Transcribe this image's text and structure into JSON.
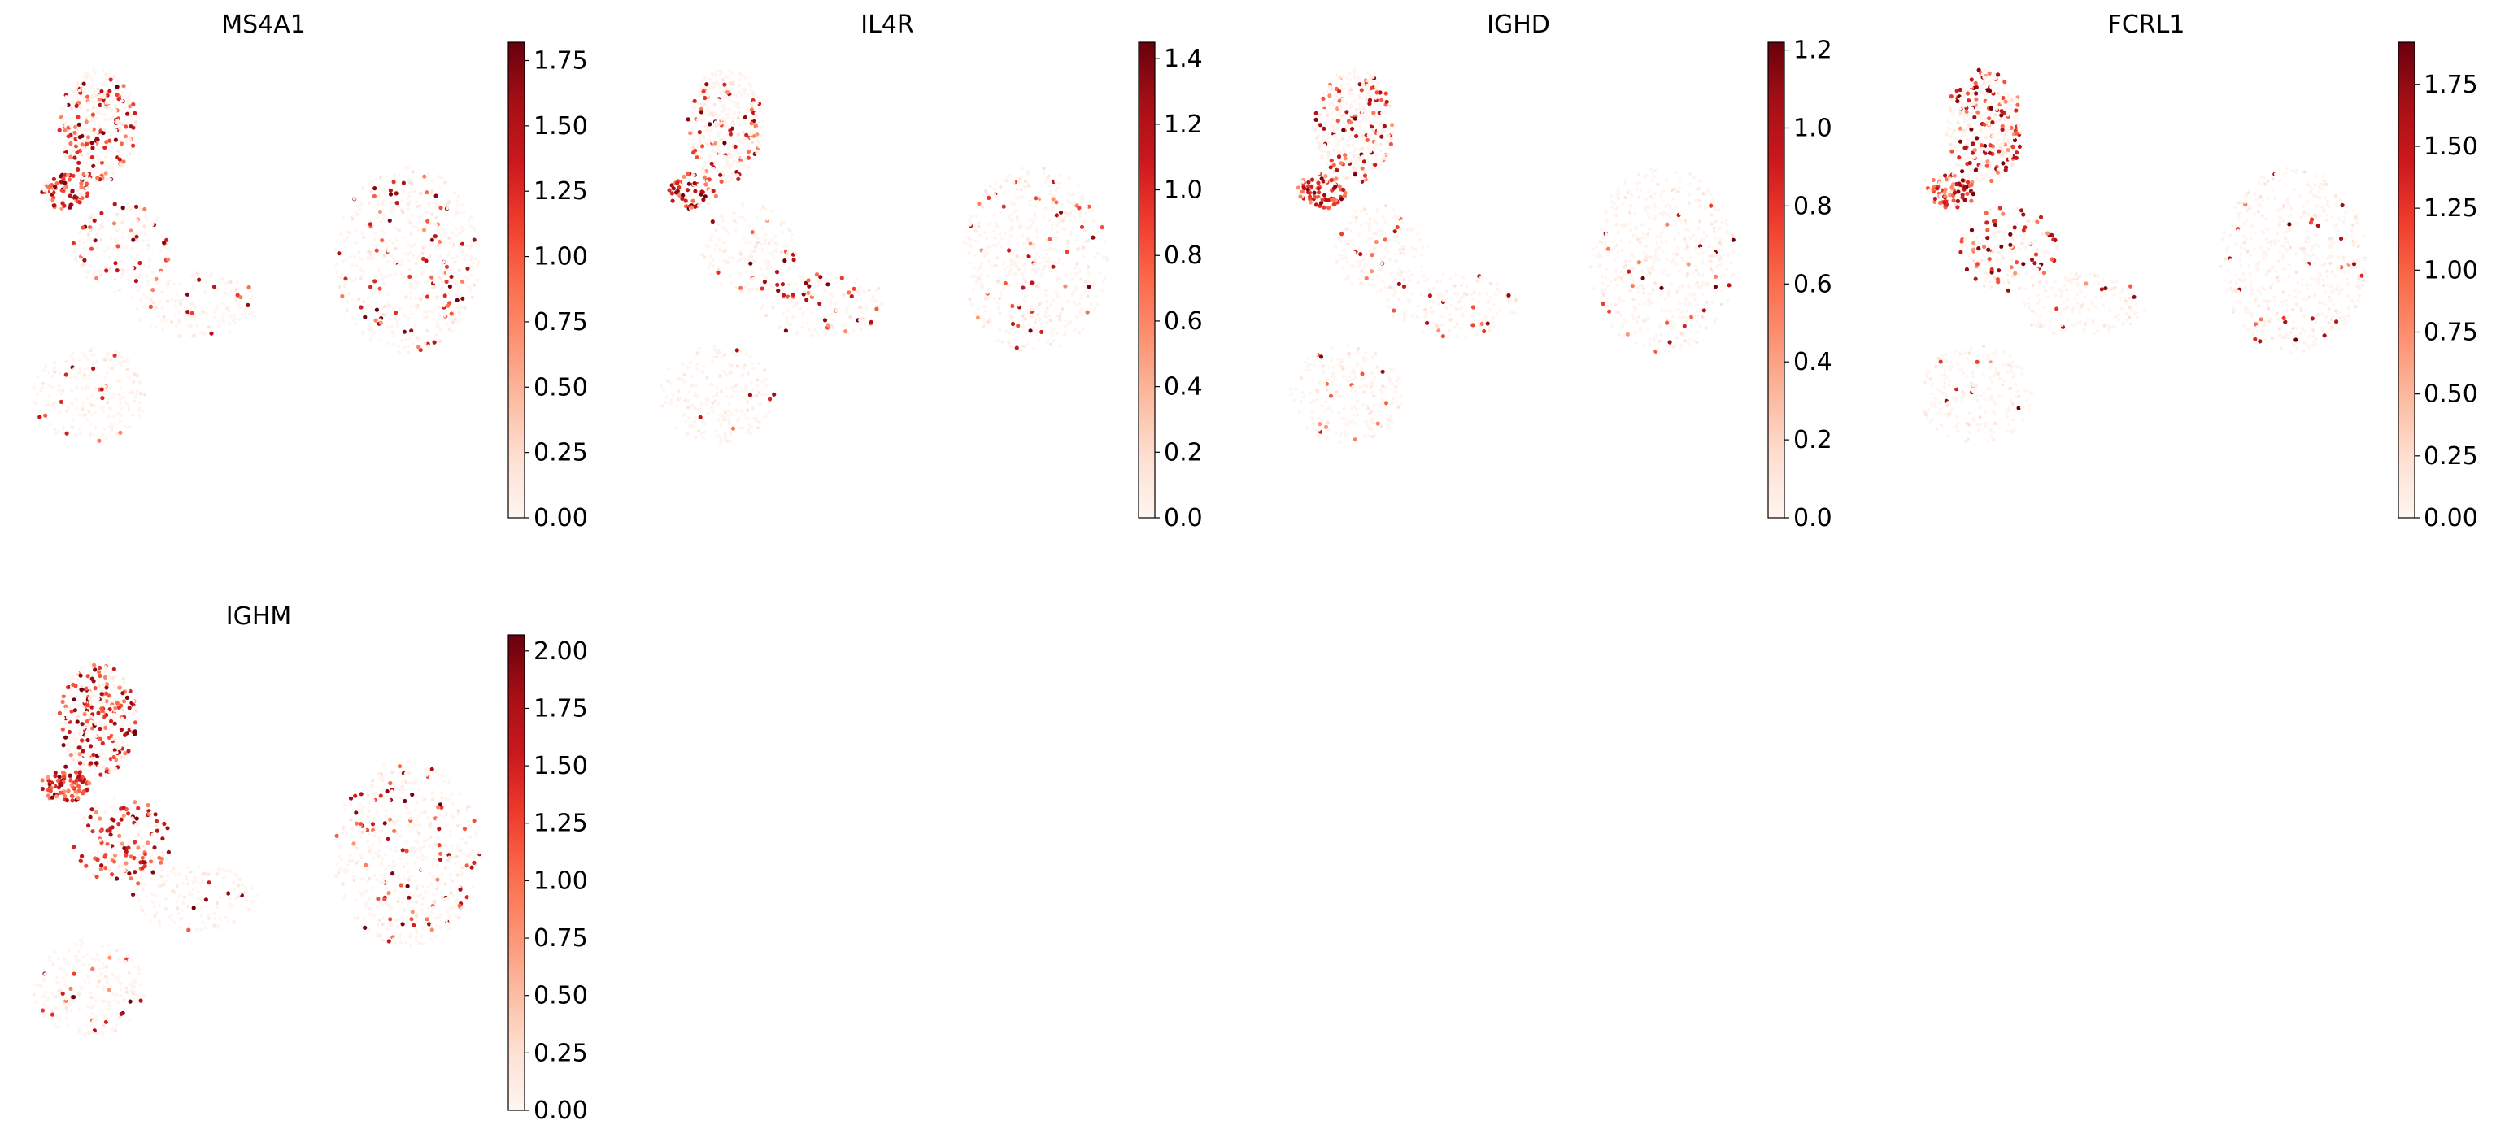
{
  "colormap": [
    "#fff5f0",
    "#fee0d2",
    "#fcbba1",
    "#fc9272",
    "#fb6a4a",
    "#ef3b2c",
    "#cb181d",
    "#a50f15",
    "#67000d"
  ],
  "chart_data": [
    {
      "type": "scatter",
      "title": "MS4A1",
      "xlabel": "",
      "ylabel": "",
      "grid": false,
      "color_scale": {
        "min": 0.0,
        "max": 1.82,
        "ticks": [
          0.0,
          0.25,
          0.5,
          0.75,
          1.0,
          1.25,
          1.5,
          1.75
        ],
        "tick_labels": [
          "0.00",
          "0.25",
          "0.50",
          "0.75",
          "1.00",
          "1.25",
          "1.50",
          "1.75"
        ]
      },
      "high_expression_regions": [
        "upper-left cluster",
        "scattered in right cluster"
      ]
    },
    {
      "type": "scatter",
      "title": "IL4R",
      "xlabel": "",
      "ylabel": "",
      "grid": false,
      "color_scale": {
        "min": 0.0,
        "max": 1.45,
        "ticks": [
          0.0,
          0.2,
          0.4,
          0.6,
          0.8,
          1.0,
          1.2,
          1.4
        ],
        "tick_labels": [
          "0.0",
          "0.2",
          "0.4",
          "0.6",
          "0.8",
          "1.0",
          "1.2",
          "1.4"
        ]
      },
      "high_expression_regions": [
        "upper-left cluster",
        "lower-left of right cluster"
      ]
    },
    {
      "type": "scatter",
      "title": "IGHD",
      "xlabel": "",
      "ylabel": "",
      "grid": false,
      "color_scale": {
        "min": 0.0,
        "max": 1.22,
        "ticks": [
          0.0,
          0.2,
          0.4,
          0.6,
          0.8,
          1.0,
          1.2
        ],
        "tick_labels": [
          "0.0",
          "0.2",
          "0.4",
          "0.6",
          "0.8",
          "1.0",
          "1.2"
        ]
      },
      "high_expression_regions": [
        "upper-left cluster"
      ]
    },
    {
      "type": "scatter",
      "title": "FCRL1",
      "xlabel": "",
      "ylabel": "",
      "grid": false,
      "color_scale": {
        "min": 0.0,
        "max": 1.92,
        "ticks": [
          0.0,
          0.25,
          0.5,
          0.75,
          1.0,
          1.25,
          1.5,
          1.75
        ],
        "tick_labels": [
          "0.00",
          "0.25",
          "0.50",
          "0.75",
          "1.00",
          "1.25",
          "1.50",
          "1.75"
        ]
      },
      "high_expression_regions": [
        "upper-left cluster"
      ]
    },
    {
      "type": "scatter",
      "title": "IGHM",
      "xlabel": "",
      "ylabel": "",
      "grid": false,
      "color_scale": {
        "min": 0.0,
        "max": 2.07,
        "ticks": [
          0.0,
          0.25,
          0.5,
          0.75,
          1.0,
          1.25,
          1.5,
          1.75,
          2.0
        ],
        "tick_labels": [
          "0.00",
          "0.25",
          "0.50",
          "0.75",
          "1.00",
          "1.25",
          "1.50",
          "1.75",
          "2.00"
        ]
      },
      "high_expression_regions": [
        "upper-left cluster",
        "left protrusion",
        "scattered in right cluster"
      ]
    }
  ]
}
